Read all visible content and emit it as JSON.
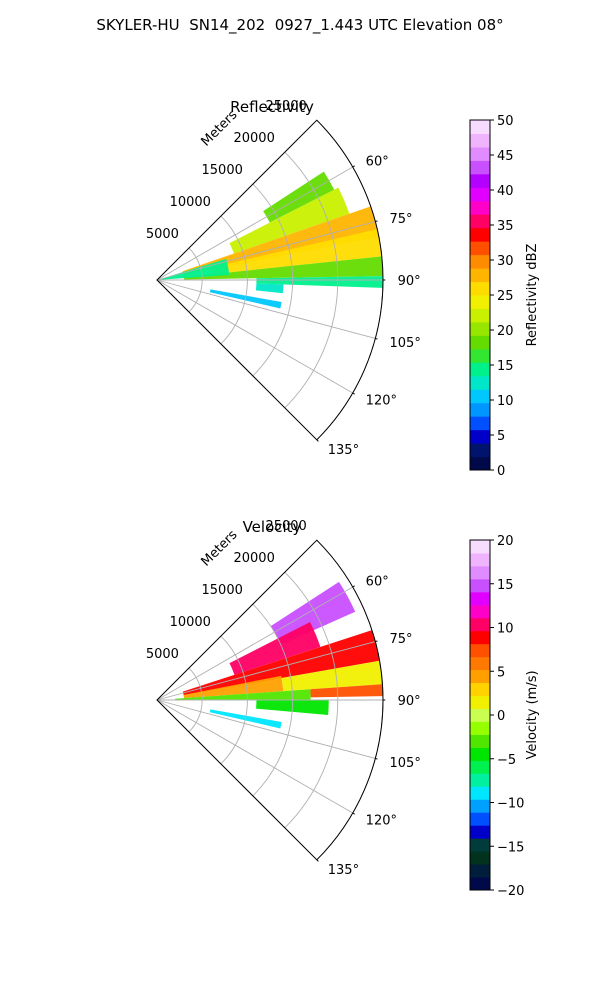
{
  "suptitle": "SKYLER-HU  SN14_202  0927_1.443 UTC Elevation 08°",
  "chart_data": [
    {
      "type": "heatmap",
      "subtype": "polar-sector (PPI radar)",
      "title": "Reflectivity",
      "radial_label": "Meters",
      "radial_ticks": [
        5000,
        10000,
        15000,
        20000,
        25000
      ],
      "r_max": 25000,
      "angle_ticks_deg": [
        60,
        75,
        90,
        105,
        120,
        135
      ],
      "theta_range_deg": [
        45,
        135
      ],
      "grid": true,
      "colorbar": {
        "label": "Reflectivity dBZ",
        "min": 0,
        "max": 50,
        "ticks": [
          0,
          5,
          10,
          15,
          20,
          25,
          30,
          35,
          40,
          45,
          50
        ]
      },
      "echo_regions": [
        {
          "theta_deg": [
            57,
            63
          ],
          "r": [
            14000,
            22000
          ],
          "value": 19
        },
        {
          "theta_deg": [
            63,
            71
          ],
          "r": [
            9000,
            22500
          ],
          "value": 22
        },
        {
          "theta_deg": [
            71,
            79
          ],
          "r": [
            3000,
            25000
          ],
          "value": 28
        },
        {
          "theta_deg": [
            77,
            84
          ],
          "r": [
            6000,
            25000
          ],
          "value": 26
        },
        {
          "theta_deg": [
            84,
            89
          ],
          "r": [
            3000,
            25000
          ],
          "value": 19
        },
        {
          "theta_deg": [
            89,
            92
          ],
          "r": [
            11000,
            25000
          ],
          "value": 15
        },
        {
          "theta_deg": [
            73,
            86
          ],
          "r": [
            500,
            8000
          ],
          "value": 14
        },
        {
          "theta_deg": [
            92,
            96
          ],
          "r": [
            11000,
            14000
          ],
          "value": 12
        },
        {
          "theta_deg": [
            100,
            103
          ],
          "r": [
            6000,
            14000
          ],
          "value": 11
        }
      ]
    },
    {
      "type": "heatmap",
      "subtype": "polar-sector (PPI radar)",
      "title": "Velocity",
      "radial_label": "Meters",
      "radial_ticks": [
        5000,
        10000,
        15000,
        20000,
        25000
      ],
      "r_max": 25000,
      "angle_ticks_deg": [
        60,
        75,
        90,
        105,
        120,
        135
      ],
      "theta_range_deg": [
        45,
        135
      ],
      "grid": true,
      "colorbar": {
        "label": "Velocity (m/s)",
        "min": -20,
        "max": 20,
        "ticks": [
          -20,
          -15,
          -10,
          -5,
          0,
          5,
          10,
          15,
          20
        ]
      },
      "echo_regions": [
        {
          "theta_deg": [
            57,
            66
          ],
          "r": [
            15000,
            24000
          ],
          "value": 15
        },
        {
          "theta_deg": [
            63,
            72
          ],
          "r": [
            9000,
            19000
          ],
          "value": 10
        },
        {
          "theta_deg": [
            72,
            80
          ],
          "r": [
            3000,
            25000
          ],
          "value": 9
        },
        {
          "theta_deg": [
            79,
            86
          ],
          "r": [
            3000,
            14000
          ],
          "value": 4
        },
        {
          "theta_deg": [
            80,
            86
          ],
          "r": [
            14000,
            25000
          ],
          "value": 2
        },
        {
          "theta_deg": [
            86,
            89
          ],
          "r": [
            17000,
            25000
          ],
          "value": 8
        },
        {
          "theta_deg": [
            86,
            90
          ],
          "r": [
            2000,
            17000
          ],
          "value": -3
        },
        {
          "theta_deg": [
            90,
            95
          ],
          "r": [
            11000,
            19000
          ],
          "value": -4
        },
        {
          "theta_deg": [
            100,
            103
          ],
          "r": [
            6000,
            14000
          ],
          "value": -9
        }
      ]
    }
  ],
  "colors": {
    "reflectivity_scale": [
      "#000a4a",
      "#00146e",
      "#0000c8",
      "#0050ff",
      "#0096ff",
      "#00c8ff",
      "#00e6c8",
      "#00f08c",
      "#32e632",
      "#64dc00",
      "#96e600",
      "#c8f000",
      "#f0f000",
      "#ffdc00",
      "#ffb400",
      "#ff8c00",
      "#ff5000",
      "#ff0000",
      "#ff0064",
      "#ff00c8",
      "#e100ff",
      "#b400ff",
      "#c850ff",
      "#e08cff",
      "#f0b4ff",
      "#f8dcff"
    ],
    "velocity_scale": [
      "#000a4a",
      "#001e3c",
      "#00321e",
      "#003c3c",
      "#0000c8",
      "#0050ff",
      "#00a0ff",
      "#00e6ff",
      "#00f0a0",
      "#00f050",
      "#00e600",
      "#50e600",
      "#96ff00",
      "#c8ff50",
      "#f0f000",
      "#ffd200",
      "#ffa000",
      "#ff7800",
      "#ff5000",
      "#ff0000",
      "#ff0064",
      "#ff00c8",
      "#e100ff",
      "#c850ff",
      "#e08cff",
      "#f0b4ff",
      "#f8dcff"
    ]
  }
}
